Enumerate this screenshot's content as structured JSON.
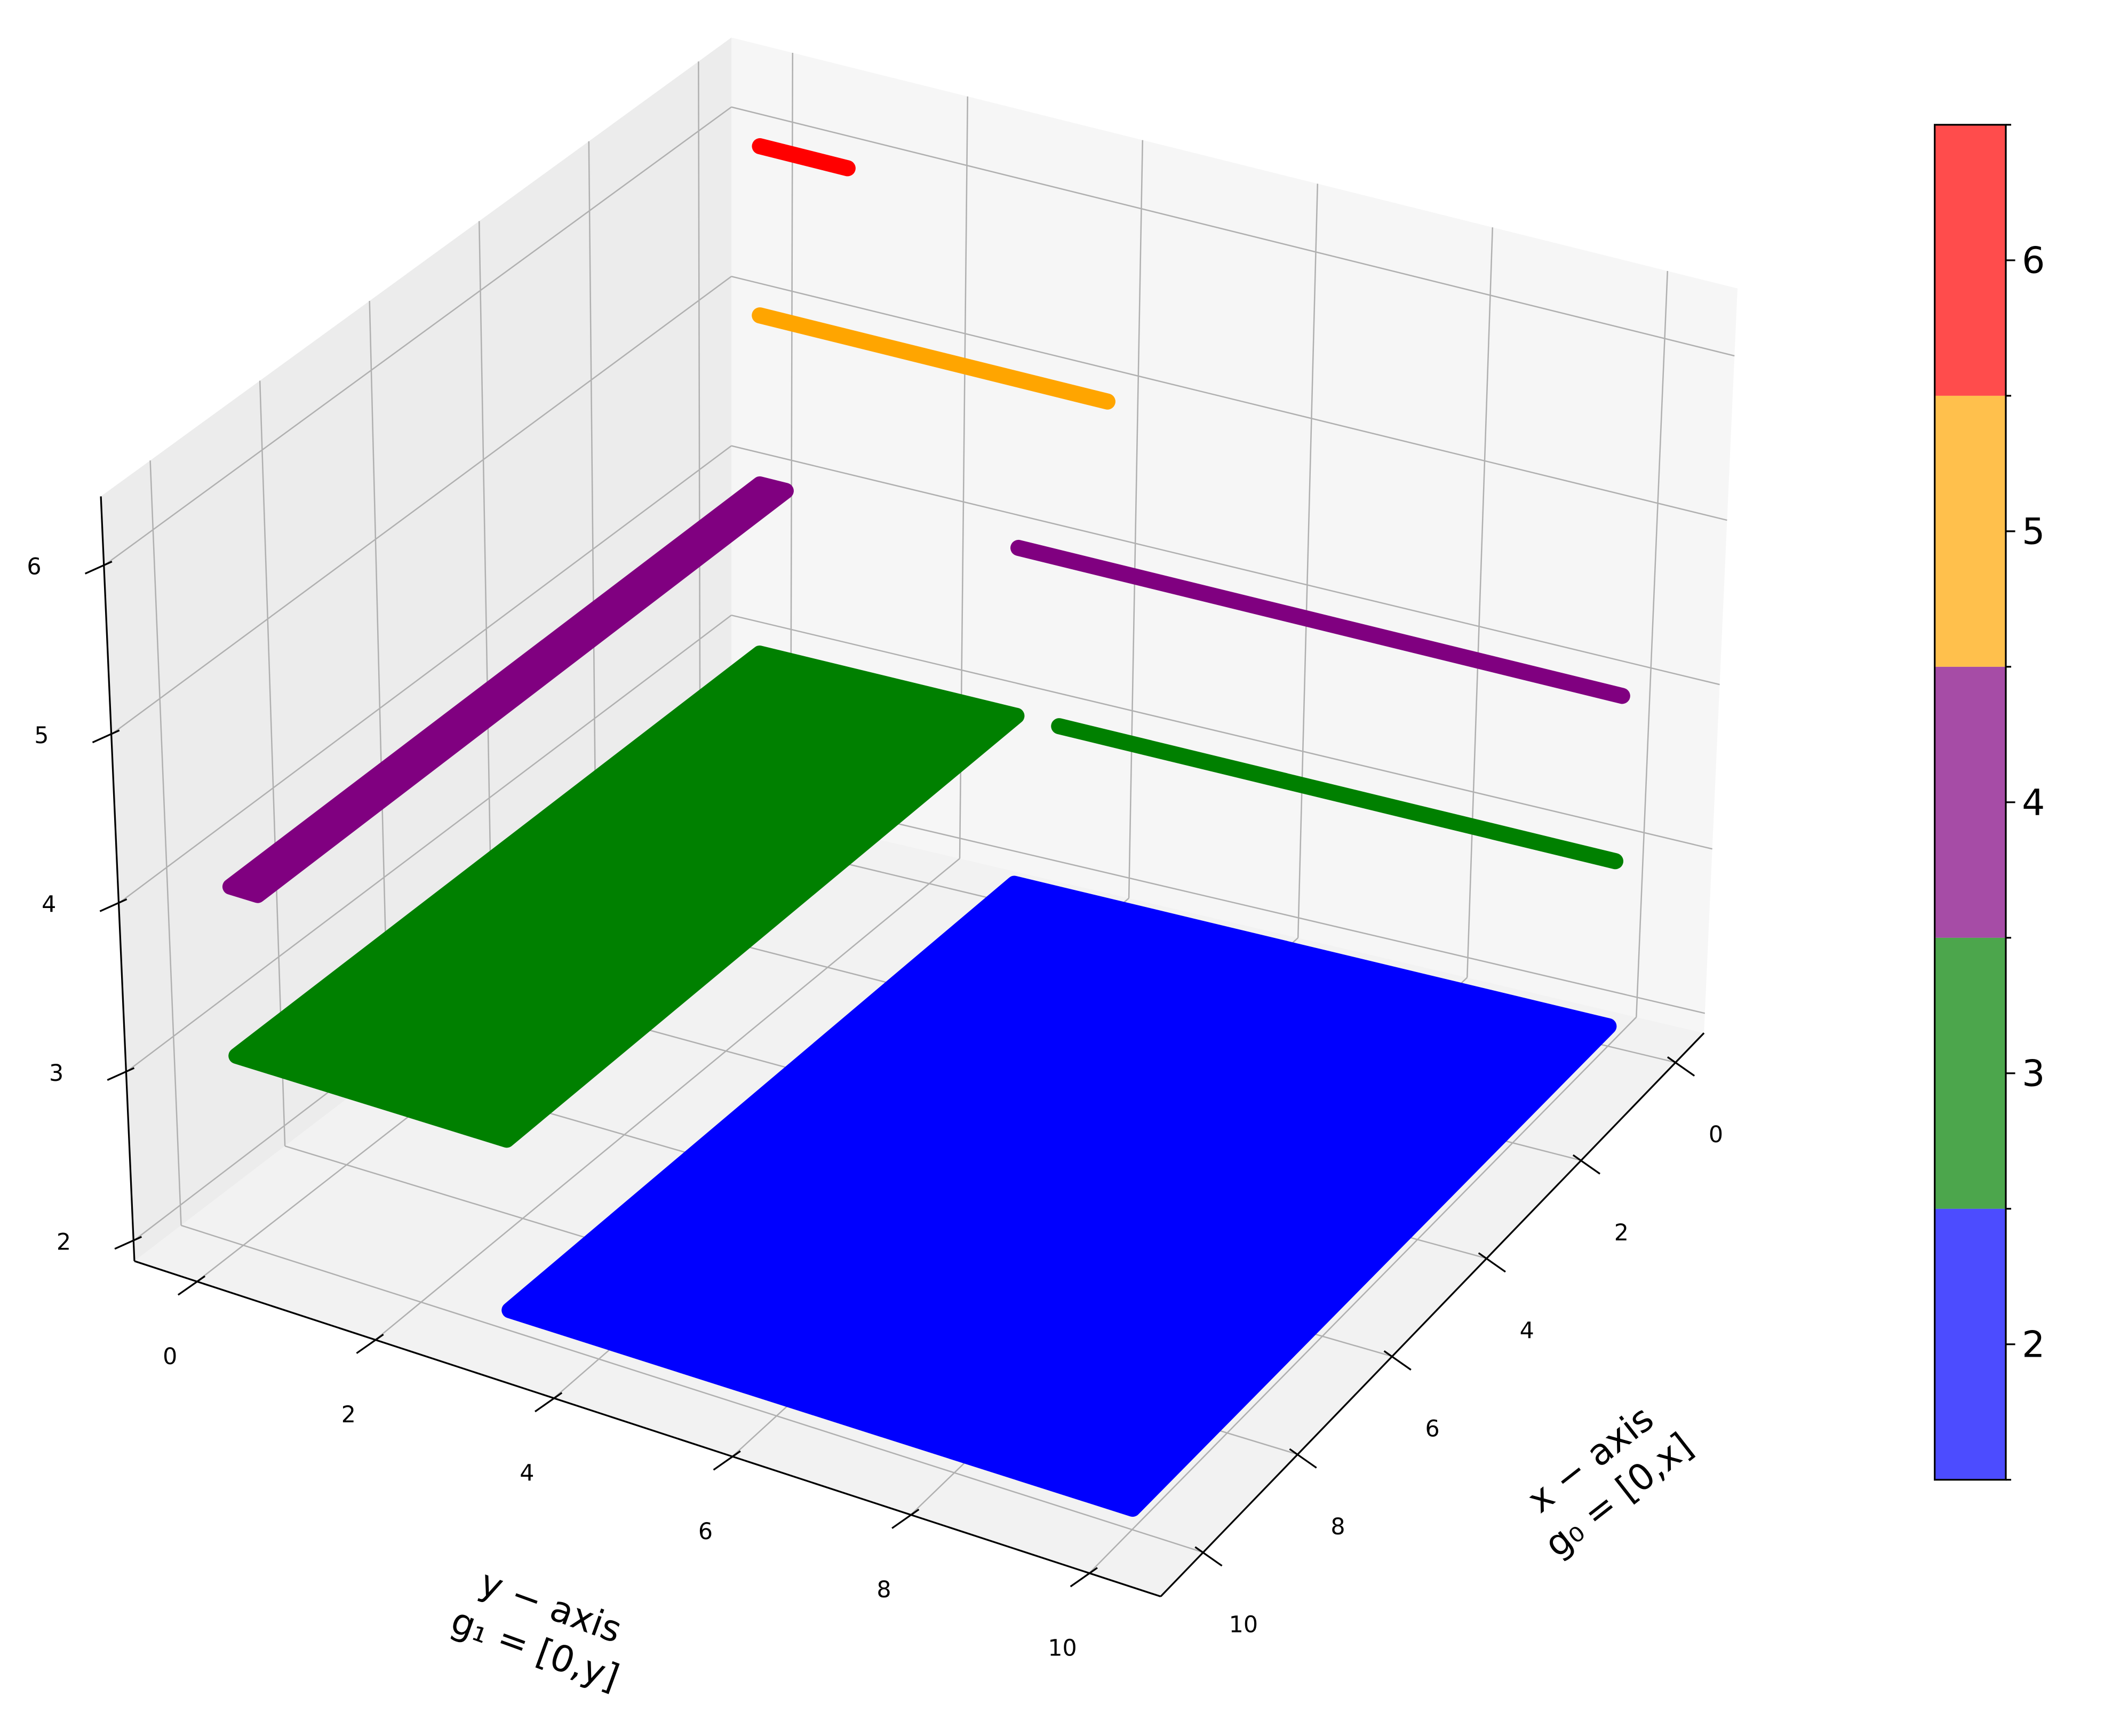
{
  "chart_data": {
    "type": "scatter3d",
    "xlabel": [
      "x − axis",
      "g₀ = [0,x]"
    ],
    "ylabel": [
      "y − axis",
      "g₁ = [0,y]"
    ],
    "xlim": [
      -0.6,
      10.9
    ],
    "ylim": [
      -0.7,
      10.8
    ],
    "zlim": [
      1.88,
      6.41
    ],
    "xticks": [
      0,
      2,
      4,
      6,
      8,
      10
    ],
    "yticks": [
      0,
      2,
      4,
      6,
      8,
      10
    ],
    "zticks": [
      2,
      3,
      4,
      5,
      6
    ],
    "grid": true,
    "series": [
      {
        "color": "blue",
        "z": 2,
        "regions": [
          {
            "x": [
              0,
              10
            ],
            "y": [
              3,
              10
            ]
          }
        ]
      },
      {
        "color": "green",
        "z": 3,
        "regions": [
          {
            "x": [
              0,
              10
            ],
            "y": [
              0,
              3
            ]
          },
          {
            "x": [
              0,
              0
            ],
            "y": [
              3.5,
              10
            ]
          }
        ]
      },
      {
        "color": "purple",
        "z": 4,
        "regions": [
          {
            "x": [
              0,
              10
            ],
            "y": [
              0,
              0.3
            ]
          },
          {
            "x": [
              0,
              0
            ],
            "y": [
              3,
              10
            ]
          }
        ]
      },
      {
        "color": "orange",
        "z": 5,
        "regions": [
          {
            "x": [
              0,
              0
            ],
            "y": [
              0,
              4
            ]
          }
        ]
      },
      {
        "color": "red",
        "z": 6,
        "regions": [
          {
            "x": [
              0,
              0
            ],
            "y": [
              0,
              1
            ]
          }
        ]
      }
    ],
    "colorbar": {
      "lim": [
        1.5,
        6.5
      ],
      "ticks": [
        2,
        3,
        4,
        5,
        6
      ],
      "colors": [
        "blue",
        "green",
        "purple",
        "orange",
        "red"
      ],
      "alpha": 0.7
    }
  }
}
